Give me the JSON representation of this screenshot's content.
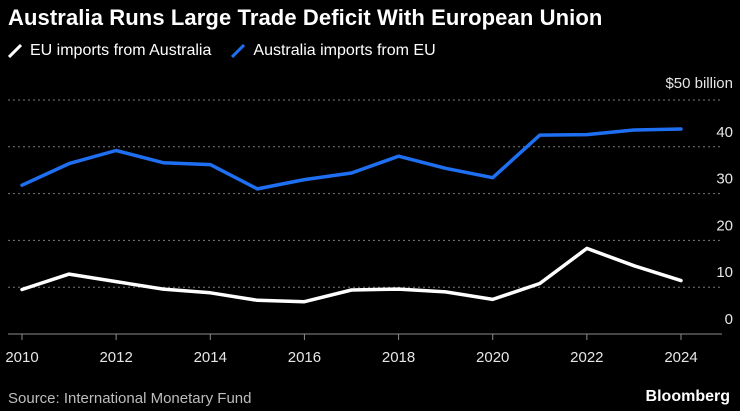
{
  "title": "Australia Runs Large Trade Deficit With European Union",
  "legend": [
    {
      "label": "EU imports from Australia",
      "color": "#ffffff"
    },
    {
      "label": "Australia imports from EU",
      "color": "#1f6ff2"
    }
  ],
  "source": "Source: International Monetary Fund",
  "brand": "Bloomberg",
  "chart_data": {
    "type": "line",
    "title": "Australia Runs Large Trade Deficit With European Union",
    "xlabel": "",
    "ylabel": "",
    "x": [
      2010,
      2011,
      2012,
      2013,
      2014,
      2015,
      2016,
      2017,
      2018,
      2019,
      2020,
      2021,
      2022,
      2023,
      2024
    ],
    "series": [
      {
        "name": "EU imports from Australia",
        "color": "#ffffff",
        "values": [
          9.5,
          12.8,
          11.2,
          9.6,
          8.8,
          7.2,
          6.9,
          9.4,
          9.6,
          9.0,
          7.4,
          10.8,
          18.3,
          14.6,
          11.4
        ]
      },
      {
        "name": "Australia imports from EU",
        "color": "#1f6ff2",
        "values": [
          31.8,
          36.4,
          39.2,
          36.6,
          36.2,
          31.0,
          33.0,
          34.4,
          38.0,
          35.4,
          33.4,
          42.5,
          42.6,
          43.6,
          43.8
        ]
      }
    ],
    "xlim": [
      2010,
      2024
    ],
    "xticks": [
      2010,
      2012,
      2014,
      2016,
      2018,
      2020,
      2022,
      2024
    ],
    "ylim": [
      0,
      50
    ],
    "yticks": [
      0,
      10,
      20,
      30,
      40,
      50
    ],
    "ytick_labels": [
      "0",
      "10",
      "20",
      "30",
      "40",
      "$50 billion"
    ],
    "grid": true,
    "legend_position": "top-left"
  }
}
